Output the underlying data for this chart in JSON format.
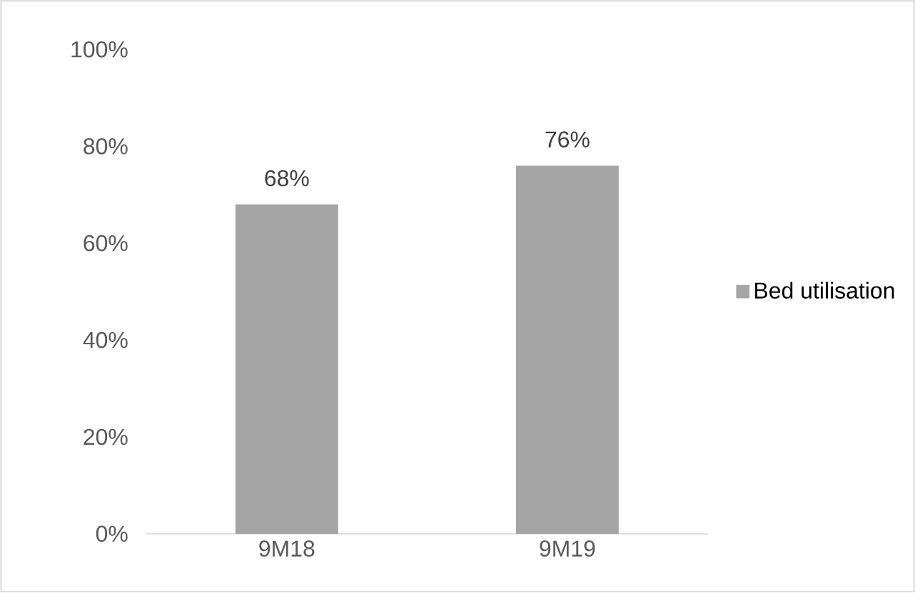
{
  "chart_data": {
    "type": "bar",
    "categories": [
      "9M18",
      "9M19"
    ],
    "series": [
      {
        "name": "Bed utilisation",
        "color": "#a5a5a5",
        "values": [
          68,
          76
        ],
        "value_labels": [
          "68%",
          "76%"
        ]
      }
    ],
    "ylim": [
      0,
      100
    ],
    "yticks": [
      {
        "value": 0,
        "label": "0%"
      },
      {
        "value": 20,
        "label": "20%"
      },
      {
        "value": 40,
        "label": "40%"
      },
      {
        "value": 60,
        "label": "60%"
      },
      {
        "value": 80,
        "label": "80%"
      },
      {
        "value": 100,
        "label": "100%"
      }
    ],
    "grid": false,
    "legend": "right"
  }
}
